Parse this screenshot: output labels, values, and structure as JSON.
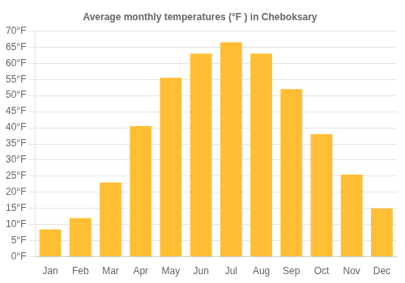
{
  "chart_data": {
    "type": "bar",
    "title": "Average monthly temperatures (°F ) in Cheboksary",
    "categories": [
      "Jan",
      "Feb",
      "Mar",
      "Apr",
      "May",
      "Jun",
      "Jul",
      "Aug",
      "Sep",
      "Oct",
      "Nov",
      "Dec"
    ],
    "values": [
      8.5,
      12,
      23,
      40.5,
      55.5,
      63,
      66.5,
      63,
      52,
      38,
      25.5,
      15
    ],
    "color": "#FFBE33",
    "ylim": [
      0,
      70
    ],
    "yticks": [
      {
        "value": 0,
        "label": "0°F"
      },
      {
        "value": 5,
        "label": "5°F"
      },
      {
        "value": 10,
        "label": "10°F"
      },
      {
        "value": 15,
        "label": "15°F"
      },
      {
        "value": 20,
        "label": "20°F"
      },
      {
        "value": 25,
        "label": "25°F"
      },
      {
        "value": 30,
        "label": "30°F"
      },
      {
        "value": 35,
        "label": "35°F"
      },
      {
        "value": 40,
        "label": "40°F"
      },
      {
        "value": 45,
        "label": "45°F"
      },
      {
        "value": 50,
        "label": "50°F"
      },
      {
        "value": 55,
        "label": "55°F"
      },
      {
        "value": 60,
        "label": "60°F"
      },
      {
        "value": 65,
        "label": "65°F"
      },
      {
        "value": 70,
        "label": "70°F"
      }
    ],
    "grid": true
  }
}
